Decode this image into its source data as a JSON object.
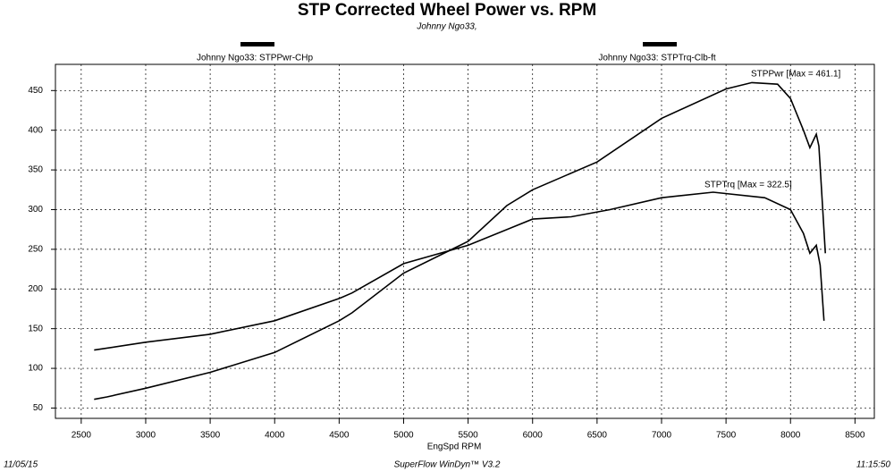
{
  "chart_data": {
    "type": "line",
    "title": "STP Corrected Wheel Power vs. RPM",
    "subtitle": "Johnny Ngo33,",
    "x_label": "EngSpd RPM",
    "footer_left": "11/05/15",
    "footer_center": "SuperFlow WinDyn™ V3.2",
    "footer_right": "11:15:50",
    "annotations": [
      "STPPwr [Max = 461.1]",
      "STPTrq [Max = 322.5]"
    ],
    "xlim": [
      2300,
      8650
    ],
    "ylim": [
      37,
      483
    ],
    "xticks": [
      2500,
      3000,
      3500,
      4000,
      4500,
      5000,
      5500,
      6000,
      6500,
      7000,
      7500,
      8000,
      8500
    ],
    "yticks": [
      50,
      100,
      150,
      200,
      250,
      300,
      350,
      400,
      450
    ],
    "grid": true,
    "series": [
      {
        "name": "Johnny Ngo33: STPPwr-CHp",
        "color": "#000000",
        "x": [
          2600,
          2700,
          3000,
          3500,
          4000,
          4500,
          4600,
          5000,
          5500,
          5800,
          6000,
          6500,
          7000,
          7500,
          7700,
          7900,
          8000,
          8100,
          8150,
          8200,
          8220,
          8250,
          8270
        ],
        "values": [
          61,
          64,
          75,
          95,
          120,
          160,
          170,
          220,
          260,
          305,
          325,
          360,
          415,
          452,
          460,
          458,
          440,
          400,
          378,
          395,
          380,
          300,
          245
        ]
      },
      {
        "name": "Johnny Ngo33: STPTrq-Clb-ft",
        "color": "#000000",
        "x": [
          2600,
          3000,
          3500,
          4000,
          4500,
          4600,
          5000,
          5500,
          6000,
          6300,
          6600,
          7000,
          7400,
          7800,
          8000,
          8100,
          8150,
          8200,
          8230,
          8260
        ],
        "values": [
          123,
          133,
          143,
          160,
          188,
          195,
          232,
          255,
          288,
          291,
          300,
          315,
          322,
          315,
          300,
          270,
          245,
          255,
          230,
          160
        ]
      }
    ]
  }
}
